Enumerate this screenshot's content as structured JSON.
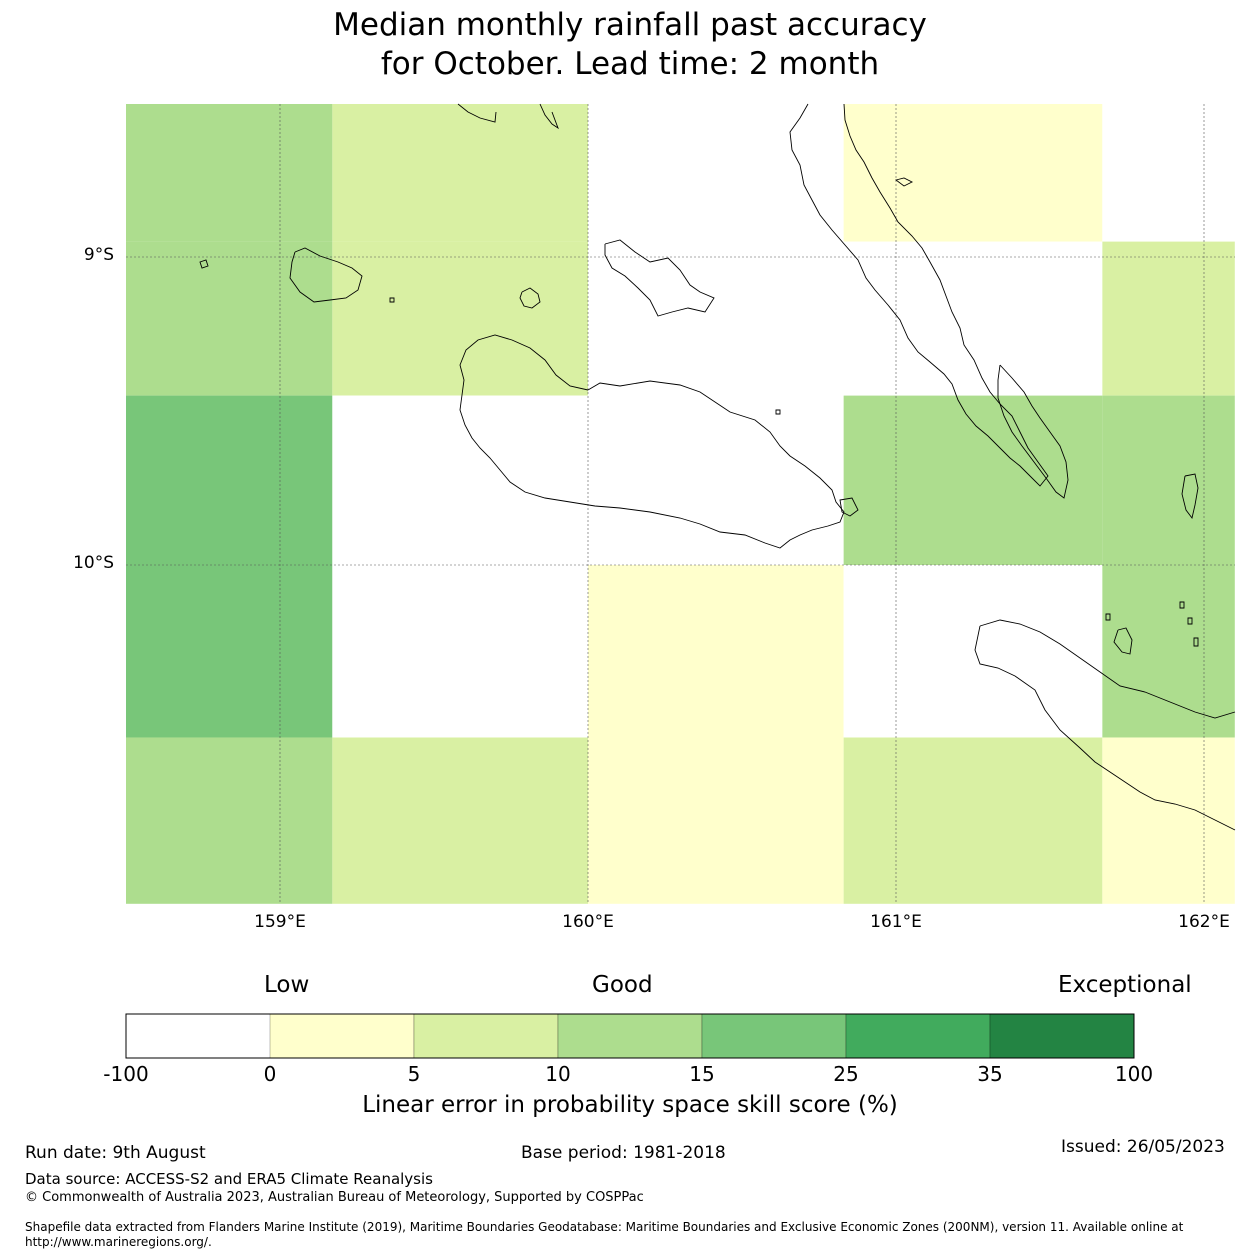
{
  "title_line1": "Median monthly rainfall past accuracy",
  "title_line2": "for October. Lead time: 2 month",
  "map": {
    "lat_labels": [
      "9°S",
      "10°S"
    ],
    "lon_labels": [
      "159°E",
      "160°E",
      "161°E",
      "162°E"
    ],
    "cells": [
      {
        "lon": [
          158.5,
          159.17
        ],
        "lat": [
          -8.5,
          -8.95
        ],
        "class": "10-15"
      },
      {
        "lon": [
          159.17,
          160.0
        ],
        "lat": [
          -8.5,
          -8.95
        ],
        "class": "5-10"
      },
      {
        "lon": [
          160.0,
          160.83
        ],
        "lat": [
          -8.5,
          -8.95
        ],
        "class": "-100-0"
      },
      {
        "lon": [
          160.83,
          161.67
        ],
        "lat": [
          -8.5,
          -8.95
        ],
        "class": "0-5"
      },
      {
        "lon": [
          161.67,
          162.1
        ],
        "lat": [
          -8.5,
          -8.95
        ],
        "class": "-100-0"
      },
      {
        "lon": [
          158.5,
          159.17
        ],
        "lat": [
          -8.95,
          -9.45
        ],
        "class": "10-15"
      },
      {
        "lon": [
          159.17,
          160.0
        ],
        "lat": [
          -8.95,
          -9.45
        ],
        "class": "5-10"
      },
      {
        "lon": [
          160.0,
          160.83
        ],
        "lat": [
          -8.95,
          -9.45
        ],
        "class": "-100-0"
      },
      {
        "lon": [
          160.83,
          161.67
        ],
        "lat": [
          -8.95,
          -9.45
        ],
        "class": "-100-0"
      },
      {
        "lon": [
          161.67,
          162.1
        ],
        "lat": [
          -8.95,
          -9.45
        ],
        "class": "5-10"
      },
      {
        "lon": [
          158.5,
          159.17
        ],
        "lat": [
          -9.45,
          -10.0
        ],
        "class": "15-25"
      },
      {
        "lon": [
          159.17,
          160.0
        ],
        "lat": [
          -9.45,
          -10.0
        ],
        "class": "-100-0"
      },
      {
        "lon": [
          160.0,
          160.83
        ],
        "lat": [
          -9.45,
          -10.0
        ],
        "class": "-100-0"
      },
      {
        "lon": [
          160.83,
          161.67
        ],
        "lat": [
          -9.45,
          -10.0
        ],
        "class": "10-15"
      },
      {
        "lon": [
          161.67,
          162.1
        ],
        "lat": [
          -9.45,
          -10.0
        ],
        "class": "10-15"
      },
      {
        "lon": [
          158.5,
          159.17
        ],
        "lat": [
          -10.0,
          -10.56
        ],
        "class": "15-25"
      },
      {
        "lon": [
          159.17,
          160.0
        ],
        "lat": [
          -10.0,
          -10.56
        ],
        "class": "-100-0"
      },
      {
        "lon": [
          160.0,
          160.83
        ],
        "lat": [
          -10.0,
          -10.56
        ],
        "class": "0-5"
      },
      {
        "lon": [
          160.83,
          161.67
        ],
        "lat": [
          -10.0,
          -10.56
        ],
        "class": "-100-0"
      },
      {
        "lon": [
          161.67,
          162.1
        ],
        "lat": [
          -10.0,
          -10.56
        ],
        "class": "10-15"
      },
      {
        "lon": [
          158.5,
          159.17
        ],
        "lat": [
          -10.56,
          -11.1
        ],
        "class": "10-15"
      },
      {
        "lon": [
          159.17,
          160.0
        ],
        "lat": [
          -10.56,
          -11.1
        ],
        "class": "5-10"
      },
      {
        "lon": [
          160.0,
          160.83
        ],
        "lat": [
          -10.56,
          -11.1
        ],
        "class": "0-5"
      },
      {
        "lon": [
          160.83,
          161.67
        ],
        "lat": [
          -10.56,
          -11.1
        ],
        "class": "5-10"
      },
      {
        "lon": [
          161.67,
          162.1
        ],
        "lat": [
          -10.56,
          -11.1
        ],
        "class": "0-5"
      }
    ]
  },
  "colorbar": {
    "category_low": "Low",
    "category_good": "Good",
    "category_exceptional": "Exceptional",
    "ticks": [
      "-100",
      "0",
      "5",
      "10",
      "15",
      "25",
      "35",
      "100"
    ],
    "colors": [
      "#ffffff",
      "#ffffcc",
      "#d9f0a3",
      "#addd8e",
      "#78c679",
      "#41ab5d",
      "#238443"
    ],
    "label": "Linear error in probability space skill score (%)"
  },
  "footer": {
    "run_date": "Run date: 9th August",
    "base_period": "Base period: 1981-2018",
    "issued": "Issued: 26/05/2023",
    "data_source": "Data source: ACCESS-S2 and ERA5 Climate Reanalysis",
    "copyright": "© Commonwealth of Australia 2023, Australian Bureau of Meteorology, Supported by COSPPac",
    "shapefile": "Shapefile data extracted from Flanders Marine Institute (2019), Maritime Boundaries Geodatabase: Maritime Boundaries and Exclusive Economic Zones (200NM), version 11. Available online at http://www.marineregions.org/."
  }
}
